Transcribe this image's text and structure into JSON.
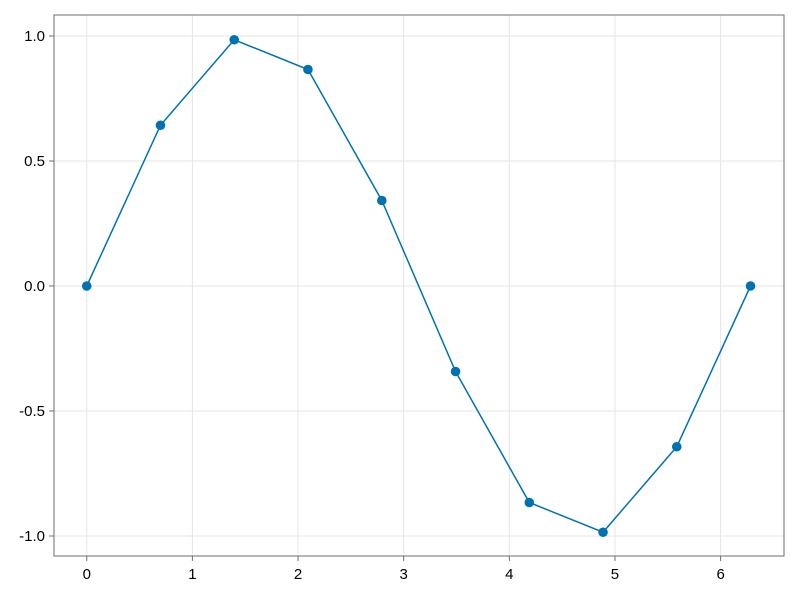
{
  "chart_data": {
    "type": "line",
    "title": "",
    "xlabel": "",
    "ylabel": "",
    "xlim": [
      -0.31,
      6.6
    ],
    "ylim": [
      -1.08,
      1.084
    ],
    "grid": true,
    "x_ticks": [
      0,
      1,
      2,
      3,
      4,
      5,
      6
    ],
    "x_tick_labels": [
      "0",
      "1",
      "2",
      "3",
      "4",
      "5",
      "6"
    ],
    "y_ticks": [
      -1.0,
      -0.5,
      0.0,
      0.5,
      1.0
    ],
    "y_tick_labels": [
      "-1.0",
      "-0.5",
      "0.0",
      "0.5",
      "1.0"
    ],
    "series": [
      {
        "x": [
          0,
          0.698,
          1.396,
          2.094,
          2.793,
          3.491,
          4.189,
          4.887,
          5.585,
          6.283
        ],
        "y": [
          0,
          0.643,
          0.985,
          0.866,
          0.342,
          -0.342,
          -0.866,
          -0.985,
          -0.643,
          0
        ],
        "color": "#0072b2",
        "markers": true
      }
    ]
  }
}
